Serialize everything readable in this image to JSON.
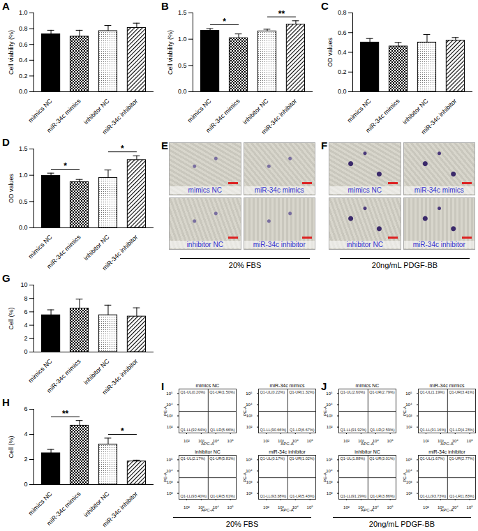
{
  "chart_data": [
    {
      "panel": "A",
      "type": "bar",
      "ylabel": "Cell viability (%)",
      "categories": [
        "mimics NC",
        "miR-34c mimics",
        "inhibitor NC",
        "miR-34c inhibitor"
      ],
      "values": [
        0.73,
        0.7,
        0.77,
        0.81
      ],
      "errors": [
        0.05,
        0.08,
        0.07,
        0.06
      ],
      "ylim": [
        0,
        1.0
      ],
      "yticks": [
        {
          "value": 0,
          "label": "0.0"
        },
        0.2,
        0.4,
        0.6,
        0.8,
        {
          "value": 1,
          "label": "1.0"
        }
      ],
      "annotations": []
    },
    {
      "panel": "B",
      "type": "bar",
      "ylabel": "Cell viability (%)",
      "categories": [
        "mimics NC",
        "miR-34c mimics",
        "inhibitor NC",
        "miR-34c inhibitor"
      ],
      "values": [
        1.16,
        1.02,
        1.15,
        1.28
      ],
      "errors": [
        0.04,
        0.08,
        0.04,
        0.07
      ],
      "ylim": [
        0,
        1.5
      ],
      "yticks": [
        {
          "value": 0,
          "label": "0.0"
        },
        0.5,
        {
          "value": 1,
          "label": "1.0"
        },
        1.5
      ],
      "annotations": [
        {
          "from": 0,
          "to": 1,
          "text": "*"
        },
        {
          "from": 2,
          "to": 3,
          "text": "**"
        }
      ]
    },
    {
      "panel": "C",
      "type": "bar",
      "ylabel": "OD values",
      "categories": [
        "mimics NC",
        "miR-34c mimics",
        "inhibitor NC",
        "miR-34c inhibitor"
      ],
      "values": [
        0.5,
        0.46,
        0.5,
        0.52
      ],
      "errors": [
        0.04,
        0.04,
        0.08,
        0.03
      ],
      "ylim": [
        0,
        0.8
      ],
      "yticks": [
        {
          "value": 0,
          "label": "0.0"
        },
        0.2,
        0.4,
        0.6,
        0.8
      ],
      "annotations": []
    },
    {
      "panel": "D",
      "type": "bar",
      "ylabel": "OD values",
      "categories": [
        "mimics NC",
        "miR-34c mimics",
        "inhibitor NC",
        "miR-34c inhibitor"
      ],
      "values": [
        0.99,
        0.87,
        0.95,
        1.29
      ],
      "errors": [
        0.05,
        0.05,
        0.15,
        0.08
      ],
      "ylim": [
        0,
        1.5
      ],
      "yticks": [
        {
          "value": 0,
          "label": "0.0"
        },
        0.5,
        {
          "value": 1,
          "label": "1.0"
        },
        1.5
      ],
      "annotations": [
        {
          "from": 0,
          "to": 1,
          "text": "*"
        },
        {
          "from": 2,
          "to": 3,
          "text": "*"
        }
      ]
    },
    {
      "panel": "E",
      "type": "image",
      "labels": [
        "mimics NC",
        "miR-34c mimics",
        "inhibitor NC",
        "miR-34c inhibitor"
      ],
      "caption": "20% FBS"
    },
    {
      "panel": "F",
      "type": "image",
      "labels": [
        "mimics NC",
        "miR-34c mimics",
        "inhibitor NC",
        "miR-34c inhibitor"
      ],
      "caption": "20ng/mL PDGF-BB"
    },
    {
      "panel": "G",
      "type": "bar",
      "ylabel": "Cell (%)",
      "categories": [
        "mimics NC",
        "miR-34c mimics",
        "inhibitor NC",
        "miR-34c inhibitor"
      ],
      "values": [
        5.5,
        6.5,
        5.5,
        5.3
      ],
      "errors": [
        0.8,
        1.4,
        1.5,
        1.3
      ],
      "ylim": [
        0,
        10
      ],
      "yticks": [
        0,
        2,
        4,
        6,
        8,
        10
      ],
      "annotations": []
    },
    {
      "panel": "H",
      "type": "bar",
      "ylabel": "Cell (%)",
      "categories": [
        "mimics NC",
        "miR-34c mimics",
        "inhibitor NC",
        "miR-34c inhibitor"
      ],
      "values": [
        2.5,
        4.7,
        3.2,
        1.85
      ],
      "errors": [
        0.3,
        0.4,
        0.5,
        0.1
      ],
      "ylim": [
        0,
        6
      ],
      "yticks": [
        0,
        2,
        4,
        6
      ],
      "annotations": [
        {
          "from": 0,
          "to": 1,
          "text": "**"
        },
        {
          "from": 2,
          "to": 3,
          "text": "*"
        }
      ]
    },
    {
      "panel": "I",
      "type": "flow",
      "caption": "20% FBS",
      "xlabel": "APC-A",
      "ylabel": "PE-A",
      "log": true,
      "xlim": [
        30,
        250000
      ],
      "ylim": [
        30,
        250000
      ],
      "xticks": [
        {
          "value": 100,
          "label": "10²"
        },
        {
          "value": 1000,
          "label": "10³"
        },
        {
          "value": 10000,
          "label": "10⁴"
        },
        {
          "value": 100000,
          "label": "10⁵"
        }
      ],
      "yticks": [
        {
          "value": 100,
          "label": "10²"
        },
        {
          "value": 1000,
          "label": "10³"
        },
        {
          "value": 10000,
          "label": "10⁴"
        },
        {
          "value": 100000,
          "label": "10⁵"
        }
      ],
      "gate": {
        "x": 3000,
        "y": 2500
      },
      "plots": [
        {
          "title": "mimics NC",
          "UL": "Q1-UL(0.20%)",
          "UR": "Q1-UR(1.50%)",
          "LL": "Q1-LL(92.64%)",
          "LR": "Q1-LR(5.66%)"
        },
        {
          "title": "miR-34c mimics",
          "UL": "Q1-UL(0.22%)",
          "UR": "Q1-UR(1.32%)",
          "LL": "Q1-LL(90.66%)",
          "LR": "Q1-LR(6.67%)"
        },
        {
          "title": "inhibitor NC",
          "UL": "Q1-UL(2.17%)",
          "UR": "Q1-UR(5.81%)",
          "LL": "Q1-LL(93.40%)",
          "LR": "Q1-LR(5.61%)"
        },
        {
          "title": "miR-34c inhibitor",
          "UL": "Q1-UL(0.17%)",
          "UR": "Q1-UR(1.02%)",
          "LL": "Q1-LL(93.38%)",
          "LR": "Q1-LR(5.43%)"
        }
      ]
    },
    {
      "panel": "J",
      "type": "flow",
      "caption": "20ng/mL PDGF-BB",
      "xlabel": "APC-A",
      "ylabel": "PE-A",
      "log": true,
      "xlim": [
        30,
        250000
      ],
      "ylim": [
        30,
        250000
      ],
      "xticks": [
        {
          "value": 100,
          "label": "10²"
        },
        {
          "value": 1000,
          "label": "10³"
        },
        {
          "value": 10000,
          "label": "10⁴"
        },
        {
          "value": 100000,
          "label": "10⁵"
        }
      ],
      "yticks": [
        {
          "value": 100,
          "label": "10²"
        },
        {
          "value": 1000,
          "label": "10³"
        },
        {
          "value": 10000,
          "label": "10⁴"
        },
        {
          "value": 100000,
          "label": "10⁵"
        }
      ],
      "gate": {
        "x": 3000,
        "y": 2500
      },
      "plots": [
        {
          "title": "mimics NC",
          "UL": "Q1-UL(2.60%)",
          "UR": "Q1-UR(2.79%)",
          "LL": "Q1-LL(91.92%)",
          "LR": "Q1-LR(2.59%)"
        },
        {
          "title": "miR-34c mimics",
          "UL": "Q1-UL(1.19%)",
          "UR": "Q1-UR(3.41%)",
          "LL": "Q1-LL(91.16%)",
          "LR": "Q1-LR(4.23%)"
        },
        {
          "title": "inhibitor NC",
          "UL": "Q1-UL(1.88%)",
          "UR": "Q1-UR(3.01%)",
          "LL": "Q1-LL(91.29%)",
          "LR": "Q1-LR(3.86%)"
        },
        {
          "title": "miR-34c inhibitor",
          "UL": "Q1-UL(1.67%)",
          "UR": "Q1-UR(2.77%)",
          "LL": "Q1-LL(93.73%)",
          "LR": "Q1-LR(1.83%)"
        }
      ]
    }
  ]
}
